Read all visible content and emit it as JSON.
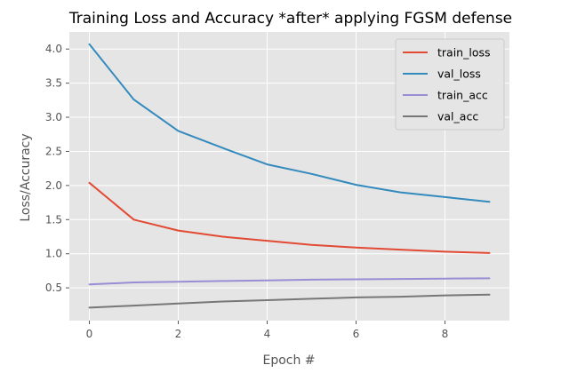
{
  "chart_data": {
    "type": "line",
    "title": "Training Loss and Accuracy *after* applying FGSM defense",
    "xlabel": "Epoch #",
    "ylabel": "Loss/Accuracy",
    "x": [
      0,
      1,
      2,
      3,
      4,
      5,
      6,
      7,
      8,
      9
    ],
    "xticks": [
      "0",
      "2",
      "4",
      "6",
      "8"
    ],
    "yticks": [
      "0.5",
      "1.0",
      "1.5",
      "2.0",
      "2.5",
      "3.0",
      "3.5",
      "4.0"
    ],
    "xlim": [
      -0.45,
      9.45
    ],
    "ylim": [
      0.02,
      4.25
    ],
    "grid": true,
    "legend_position": "top-right",
    "series": [
      {
        "name": "train_loss",
        "color": "#E24A33",
        "values": [
          2.04,
          1.5,
          1.34,
          1.25,
          1.19,
          1.13,
          1.09,
          1.06,
          1.03,
          1.01
        ]
      },
      {
        "name": "val_loss",
        "color": "#348ABD",
        "values": [
          4.07,
          3.26,
          2.8,
          2.55,
          2.31,
          2.17,
          2.01,
          1.9,
          1.83,
          1.76
        ]
      },
      {
        "name": "train_acc",
        "color": "#988ED5",
        "values": [
          0.55,
          0.58,
          0.59,
          0.6,
          0.61,
          0.62,
          0.625,
          0.63,
          0.635,
          0.64
        ]
      },
      {
        "name": "val_acc",
        "color": "#777777",
        "values": [
          0.21,
          0.24,
          0.27,
          0.3,
          0.32,
          0.34,
          0.36,
          0.37,
          0.39,
          0.4
        ]
      }
    ]
  }
}
